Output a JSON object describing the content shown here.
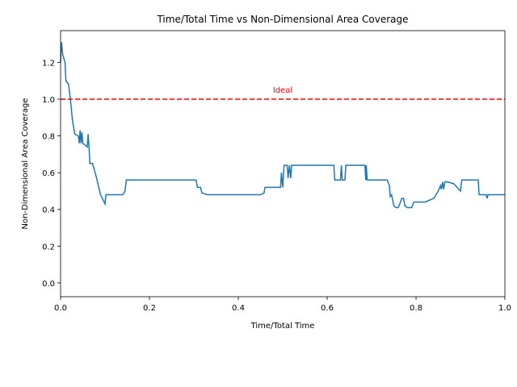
{
  "chart_data": {
    "type": "line",
    "title": "Time/Total Time vs Non-Dimensional Area Coverage",
    "x_label": "Time/Total Time",
    "y_label": "Non-Dimensional Area Coverage",
    "xlim": [
      0,
      1
    ],
    "ylim": [
      -0.075,
      1.373
    ],
    "xticks": [
      {
        "value": 0,
        "label": "0.0"
      },
      0.2,
      0.4,
      0.6,
      0.8,
      {
        "value": 1,
        "label": "1.0"
      }
    ],
    "yticks": [
      {
        "value": 0,
        "label": "0.0"
      },
      0.2,
      0.4,
      0.6,
      0.8,
      {
        "value": 1,
        "label": "1.0"
      },
      1.2
    ],
    "reference_line": {
      "value": 1,
      "label": "Ideal",
      "color": "#ff0000"
    },
    "series": [
      {
        "color": "#1f77b4",
        "x": [
          0,
          0.002,
          0.005,
          0.01,
          0.012,
          0.018,
          0.022,
          0.027,
          0.032,
          0.04,
          0.042,
          0.044,
          0.046,
          0.048,
          0.05,
          0.055,
          0.06,
          0.062,
          0.064,
          0.066,
          0.072,
          0.08,
          0.09,
          0.1,
          0.102,
          0.12,
          0.14,
          0.145,
          0.148,
          0.305,
          0.308,
          0.315,
          0.318,
          0.33,
          0.45,
          0.458,
          0.46,
          0.49,
          0.495,
          0.497,
          0.5,
          0.503,
          0.51,
          0.512,
          0.515,
          0.518,
          0.52,
          0.615,
          0.617,
          0.63,
          0.632,
          0.634,
          0.64,
          0.642,
          0.685,
          0.687,
          0.688,
          0.69,
          0.735,
          0.74,
          0.742,
          0.745,
          0.75,
          0.755,
          0.76,
          0.765,
          0.768,
          0.772,
          0.775,
          0.78,
          0.79,
          0.795,
          0.82,
          0.84,
          0.85,
          0.855,
          0.857,
          0.86,
          0.862,
          0.865,
          0.87,
          0.885,
          0.9,
          0.903,
          0.94,
          0.942,
          0.958,
          0.96,
          0.962,
          1
        ],
        "values": [
          1.2,
          1.31,
          1.24,
          1.2,
          1.1,
          1.08,
          1.0,
          0.88,
          0.81,
          0.8,
          0.76,
          0.83,
          0.76,
          0.82,
          0.76,
          0.75,
          0.74,
          0.81,
          0.74,
          0.65,
          0.65,
          0.58,
          0.48,
          0.43,
          0.48,
          0.48,
          0.48,
          0.5,
          0.56,
          0.56,
          0.52,
          0.52,
          0.49,
          0.48,
          0.48,
          0.49,
          0.52,
          0.52,
          0.52,
          0.6,
          0.52,
          0.64,
          0.64,
          0.57,
          0.64,
          0.57,
          0.64,
          0.64,
          0.56,
          0.56,
          0.64,
          0.56,
          0.56,
          0.64,
          0.64,
          0.56,
          0.64,
          0.56,
          0.56,
          0.53,
          0.47,
          0.48,
          0.42,
          0.41,
          0.41,
          0.44,
          0.46,
          0.46,
          0.42,
          0.41,
          0.41,
          0.44,
          0.44,
          0.46,
          0.5,
          0.53,
          0.51,
          0.55,
          0.51,
          0.55,
          0.55,
          0.54,
          0.5,
          0.56,
          0.56,
          0.48,
          0.48,
          0.46,
          0.48,
          0.48
        ]
      }
    ]
  }
}
